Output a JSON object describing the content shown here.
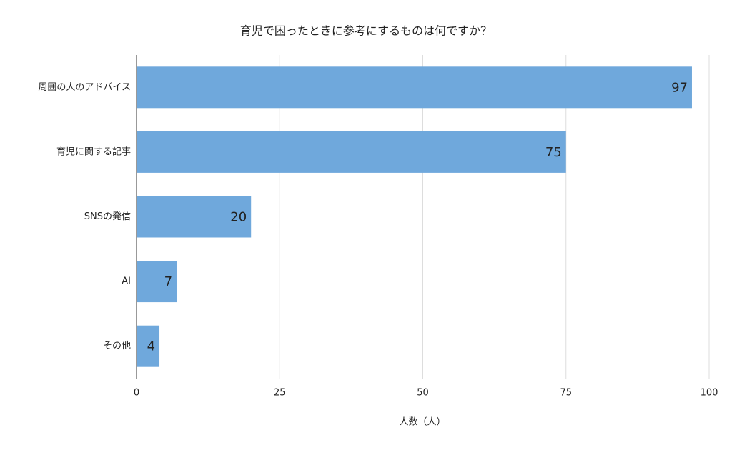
{
  "chart_data": {
    "type": "hbar",
    "title": "育児で困ったときに参考にするものは何ですか？",
    "categories": [
      "周囲の人のアドバイス",
      "育児に関する記事",
      "SNSの発信",
      "AI",
      "その他"
    ],
    "values": [
      97,
      75,
      20,
      7,
      4
    ],
    "color": "#6fa8dc",
    "xlabel": "人数（人）",
    "xlim": [
      0,
      100
    ],
    "xticks": [
      0,
      25,
      50,
      75,
      100
    ],
    "grid": true
  }
}
